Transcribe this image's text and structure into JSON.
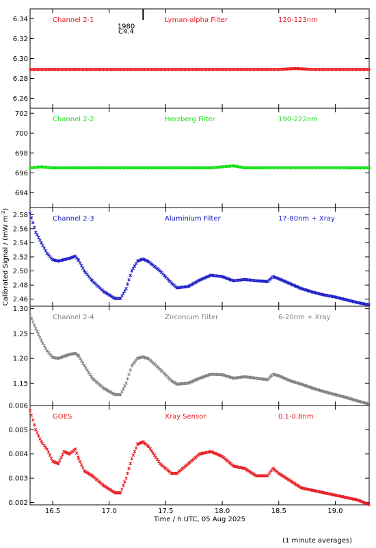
{
  "chart_data": {
    "type": "scatter",
    "xlabel": "Time / h UTC, 05 Aug 2025",
    "ylabel": "Calibrated Signal / (mW m",
    "ylabel_sup": "-2",
    "ylabel_close": ")",
    "footnote": "(1 minute averages)",
    "xlim": [
      16.3,
      19.3
    ],
    "xticks": [
      {
        "v": 16.5,
        "label": "16.5"
      },
      {
        "v": 17.0,
        "label": "17.0"
      },
      {
        "v": 17.5,
        "label": "17.5"
      },
      {
        "v": 18.0,
        "label": "18.0"
      },
      {
        "v": 18.5,
        "label": "18.5"
      },
      {
        "v": 19.0,
        "label": "19.0"
      }
    ],
    "annotations": [
      {
        "text": "1980",
        "x": 17.15,
        "y": 6.333
      },
      {
        "text": "C4.4",
        "x": 17.15,
        "y": 6.328
      }
    ],
    "panels": [
      {
        "name": "Channel 2-1",
        "filter": "Lyman-alpha Filter",
        "band": "120-123nm",
        "color": "#e8191e",
        "ylim": [
          6.25,
          6.35
        ],
        "yticks": [
          {
            "v": 6.26,
            "label": "6.26"
          },
          {
            "v": 6.28,
            "label": "6.28"
          },
          {
            "v": 6.3,
            "label": "6.30"
          },
          {
            "v": 6.32,
            "label": "6.32"
          },
          {
            "v": 6.34,
            "label": "6.34"
          }
        ],
        "points": [
          [
            16.3,
            6.289
          ],
          [
            16.5,
            6.289
          ],
          [
            16.7,
            6.289
          ],
          [
            16.9,
            6.289
          ],
          [
            17.1,
            6.289
          ],
          [
            17.3,
            6.289
          ],
          [
            17.5,
            6.289
          ],
          [
            17.7,
            6.289
          ],
          [
            17.9,
            6.289
          ],
          [
            18.1,
            6.289
          ],
          [
            18.3,
            6.289
          ],
          [
            18.5,
            6.289
          ],
          [
            18.65,
            6.29
          ],
          [
            18.8,
            6.289
          ],
          [
            19.0,
            6.289
          ],
          [
            19.2,
            6.289
          ],
          [
            19.3,
            6.289
          ]
        ]
      },
      {
        "name": "Channel 2-2",
        "filter": "Herzberg Filter",
        "band": "190-222nm",
        "color": "#12e012",
        "ylim": [
          692.5,
          702.5
        ],
        "yticks": [
          {
            "v": 694,
            "label": "694"
          },
          {
            "v": 696,
            "label": "696"
          },
          {
            "v": 698,
            "label": "698"
          },
          {
            "v": 700,
            "label": "700"
          },
          {
            "v": 702,
            "label": "702"
          }
        ],
        "points": [
          [
            16.3,
            696.5
          ],
          [
            16.4,
            696.6
          ],
          [
            16.5,
            696.5
          ],
          [
            16.7,
            696.5
          ],
          [
            16.9,
            696.5
          ],
          [
            17.1,
            696.5
          ],
          [
            17.3,
            696.5
          ],
          [
            17.5,
            696.5
          ],
          [
            17.7,
            696.5
          ],
          [
            17.9,
            696.5
          ],
          [
            18.1,
            696.7
          ],
          [
            18.2,
            696.5
          ],
          [
            18.4,
            696.5
          ],
          [
            18.6,
            696.5
          ],
          [
            18.8,
            696.5
          ],
          [
            19.0,
            696.5
          ],
          [
            19.2,
            696.5
          ],
          [
            19.3,
            696.5
          ]
        ]
      },
      {
        "name": "Channel 2-3",
        "filter": "Aluminium Filter",
        "band": "17-80nm + Xray",
        "color": "#1c1cc8",
        "ylim": [
          2.45,
          2.59
        ],
        "yticks": [
          {
            "v": 2.46,
            "label": "2.46"
          },
          {
            "v": 2.48,
            "label": "2.48"
          },
          {
            "v": 2.5,
            "label": "2.50"
          },
          {
            "v": 2.52,
            "label": "2.52"
          },
          {
            "v": 2.54,
            "label": "2.54"
          },
          {
            "v": 2.56,
            "label": "2.56"
          },
          {
            "v": 2.58,
            "label": "2.58"
          }
        ],
        "points": [
          [
            16.3,
            2.582
          ],
          [
            16.35,
            2.555
          ],
          [
            16.4,
            2.54
          ],
          [
            16.45,
            2.525
          ],
          [
            16.5,
            2.516
          ],
          [
            16.55,
            2.514
          ],
          [
            16.6,
            2.516
          ],
          [
            16.65,
            2.518
          ],
          [
            16.7,
            2.521
          ],
          [
            16.73,
            2.515
          ],
          [
            16.78,
            2.5
          ],
          [
            16.85,
            2.486
          ],
          [
            16.95,
            2.471
          ],
          [
            17.05,
            2.461
          ],
          [
            17.1,
            2.461
          ],
          [
            17.15,
            2.475
          ],
          [
            17.2,
            2.5
          ],
          [
            17.25,
            2.514
          ],
          [
            17.3,
            2.517
          ],
          [
            17.35,
            2.513
          ],
          [
            17.45,
            2.5
          ],
          [
            17.55,
            2.483
          ],
          [
            17.6,
            2.476
          ],
          [
            17.7,
            2.478
          ],
          [
            17.8,
            2.487
          ],
          [
            17.9,
            2.494
          ],
          [
            18.0,
            2.492
          ],
          [
            18.1,
            2.486
          ],
          [
            18.2,
            2.488
          ],
          [
            18.3,
            2.486
          ],
          [
            18.4,
            2.485
          ],
          [
            18.45,
            2.492
          ],
          [
            18.5,
            2.489
          ],
          [
            18.6,
            2.482
          ],
          [
            18.7,
            2.475
          ],
          [
            18.8,
            2.47
          ],
          [
            18.9,
            2.466
          ],
          [
            19.0,
            2.463
          ],
          [
            19.1,
            2.459
          ],
          [
            19.2,
            2.455
          ],
          [
            19.3,
            2.452
          ]
        ]
      },
      {
        "name": "Channel 2-4",
        "filter": "Zirconium Filter",
        "band": "6-20nm + Xray",
        "color": "#808080",
        "ylim": [
          1.105,
          1.305
        ],
        "yticks": [
          {
            "v": 1.15,
            "label": "1.15"
          },
          {
            "v": 1.2,
            "label": "1.20"
          },
          {
            "v": 1.25,
            "label": "1.25"
          },
          {
            "v": 1.3,
            "label": "1.30"
          }
        ],
        "points": [
          [
            16.3,
            1.287
          ],
          [
            16.35,
            1.26
          ],
          [
            16.4,
            1.236
          ],
          [
            16.45,
            1.215
          ],
          [
            16.5,
            1.202
          ],
          [
            16.55,
            1.2
          ],
          [
            16.6,
            1.204
          ],
          [
            16.65,
            1.208
          ],
          [
            16.7,
            1.21
          ],
          [
            16.73,
            1.205
          ],
          [
            16.78,
            1.185
          ],
          [
            16.85,
            1.16
          ],
          [
            16.95,
            1.14
          ],
          [
            17.05,
            1.127
          ],
          [
            17.1,
            1.127
          ],
          [
            17.15,
            1.15
          ],
          [
            17.2,
            1.185
          ],
          [
            17.25,
            1.2
          ],
          [
            17.3,
            1.203
          ],
          [
            17.35,
            1.199
          ],
          [
            17.45,
            1.178
          ],
          [
            17.55,
            1.155
          ],
          [
            17.6,
            1.148
          ],
          [
            17.7,
            1.15
          ],
          [
            17.8,
            1.16
          ],
          [
            17.9,
            1.168
          ],
          [
            18.0,
            1.167
          ],
          [
            18.1,
            1.16
          ],
          [
            18.2,
            1.163
          ],
          [
            18.3,
            1.16
          ],
          [
            18.4,
            1.157
          ],
          [
            18.45,
            1.168
          ],
          [
            18.5,
            1.165
          ],
          [
            18.6,
            1.155
          ],
          [
            18.7,
            1.148
          ],
          [
            18.8,
            1.14
          ],
          [
            18.9,
            1.133
          ],
          [
            19.0,
            1.127
          ],
          [
            19.1,
            1.121
          ],
          [
            19.2,
            1.114
          ],
          [
            19.3,
            1.108
          ]
        ]
      },
      {
        "name": "GOES",
        "filter": "Xray Sensor",
        "band": "0.1-0.8nm",
        "color": "#e8191e",
        "ylim": [
          0.0019,
          0.006
        ],
        "yticks": [
          {
            "v": 0.002,
            "label": "0.002"
          },
          {
            "v": 0.003,
            "label": "0.003"
          },
          {
            "v": 0.004,
            "label": "0.004"
          },
          {
            "v": 0.005,
            "label": "0.005"
          },
          {
            "v": 0.006,
            "label": "0.006"
          }
        ],
        "points": [
          [
            16.3,
            0.0058
          ],
          [
            16.35,
            0.005
          ],
          [
            16.4,
            0.0045
          ],
          [
            16.45,
            0.0042
          ],
          [
            16.5,
            0.0037
          ],
          [
            16.55,
            0.0036
          ],
          [
            16.6,
            0.0041
          ],
          [
            16.65,
            0.004
          ],
          [
            16.7,
            0.0042
          ],
          [
            16.73,
            0.0038
          ],
          [
            16.78,
            0.0033
          ],
          [
            16.85,
            0.0031
          ],
          [
            16.95,
            0.0027
          ],
          [
            17.05,
            0.0024
          ],
          [
            17.1,
            0.0024
          ],
          [
            17.15,
            0.003
          ],
          [
            17.2,
            0.0038
          ],
          [
            17.25,
            0.0044
          ],
          [
            17.3,
            0.0045
          ],
          [
            17.35,
            0.0043
          ],
          [
            17.45,
            0.0036
          ],
          [
            17.55,
            0.0032
          ],
          [
            17.6,
            0.0032
          ],
          [
            17.7,
            0.0036
          ],
          [
            17.8,
            0.004
          ],
          [
            17.9,
            0.0041
          ],
          [
            18.0,
            0.0039
          ],
          [
            18.1,
            0.0035
          ],
          [
            18.2,
            0.0034
          ],
          [
            18.3,
            0.0031
          ],
          [
            18.4,
            0.0031
          ],
          [
            18.45,
            0.0034
          ],
          [
            18.5,
            0.0032
          ],
          [
            18.6,
            0.0029
          ],
          [
            18.7,
            0.0026
          ],
          [
            18.8,
            0.0025
          ],
          [
            18.9,
            0.0024
          ],
          [
            19.0,
            0.0023
          ],
          [
            19.1,
            0.0022
          ],
          [
            19.2,
            0.0021
          ],
          [
            19.3,
            0.0019
          ]
        ]
      }
    ]
  }
}
